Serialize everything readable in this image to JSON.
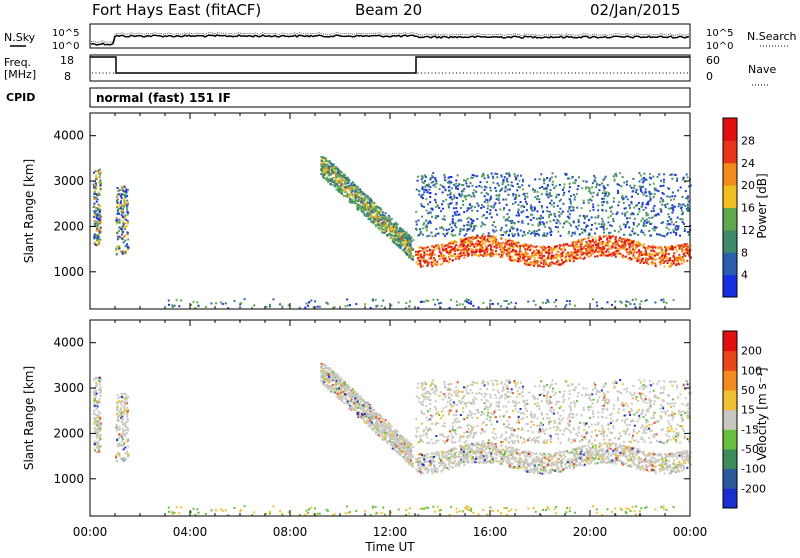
{
  "header": {
    "station": "Fort Hays East (fitACF)",
    "beam": "Beam 20",
    "date": "02/Jan/2015"
  },
  "top_panels": {
    "sky_label": "N.Sky",
    "search_label": "N.Search",
    "sky_scale_top": "10^5",
    "sky_scale_bottom": "10^0",
    "freq_label": "Freq.",
    "freq_unit": "[MHz]",
    "freq_ticks": [
      "18",
      "8"
    ],
    "nave_label": "Nave",
    "nave_ticks": [
      "60",
      "0"
    ],
    "cpid_label": "CPID",
    "cpid_text": "normal (fast) 151 IF"
  },
  "axes": {
    "ylabel": "Slant Range [km]",
    "xlabel": "Time UT",
    "y_ticks": [
      "1000",
      "2000",
      "3000",
      "4000"
    ],
    "x_ticks": [
      "00:00",
      "04:00",
      "08:00",
      "12:00",
      "16:00",
      "20:00",
      "00:00"
    ]
  },
  "colorbars": {
    "power": {
      "title": "Power [dB]",
      "labels": [
        "4",
        "8",
        "12",
        "16",
        "20",
        "24",
        "28"
      ],
      "colors": [
        "#1a2fe0",
        "#2a5fb0",
        "#3e8a6a",
        "#5ea850",
        "#f0c020",
        "#f28a1c",
        "#e83418",
        "#e01010"
      ]
    },
    "velocity": {
      "title": "Velocity [m s⁻¹]",
      "labels": [
        "200",
        "100",
        "50",
        "15",
        "-15",
        "-50",
        "-100",
        "-200"
      ],
      "colors": [
        "#1a2fd0",
        "#2a5a9a",
        "#3d8a5a",
        "#6ac040",
        "#c8c8c0",
        "#f0c030",
        "#f28a20",
        "#e84818",
        "#e01010"
      ]
    }
  },
  "chart_data": [
    {
      "type": "heatmap",
      "title": "Power",
      "xlabel": "Time UT",
      "ylabel": "Slant Range [km]",
      "xlim": [
        0,
        24
      ],
      "ylim": [
        180,
        4500
      ],
      "colorbar": "Power [dB]",
      "colorbar_range": [
        0,
        30
      ],
      "features": [
        {
          "t_start": 0.1,
          "t_end": 0.4,
          "range_low": 1600,
          "range_high": 3300,
          "power_db": [
            4,
            24
          ]
        },
        {
          "t_start": 1.0,
          "t_end": 1.5,
          "range_low": 1400,
          "range_high": 2900,
          "power_db": [
            4,
            22
          ]
        },
        {
          "t_start": 9.2,
          "t_end": 12.9,
          "range_low": 1300,
          "range_high": 3500,
          "power_db": [
            4,
            28
          ]
        },
        {
          "t_start": 13.0,
          "t_end": 24.0,
          "range_low": 1150,
          "range_high": 3300,
          "power_db": [
            4,
            30
          ]
        }
      ]
    },
    {
      "type": "heatmap",
      "title": "Velocity",
      "xlabel": "Time UT",
      "ylabel": "Slant Range [km]",
      "xlim": [
        0,
        24
      ],
      "ylim": [
        180,
        4500
      ],
      "colorbar": "Velocity [m s-1]",
      "colorbar_range": [
        -200,
        200
      ],
      "features": [
        {
          "t_start": 0.1,
          "t_end": 0.4,
          "range_low": 1600,
          "range_high": 3300,
          "velocity": [
            -50,
            15
          ]
        },
        {
          "t_start": 1.0,
          "t_end": 1.5,
          "range_low": 1400,
          "range_high": 2900,
          "velocity": [
            -50,
            15
          ]
        },
        {
          "t_start": 9.2,
          "t_end": 12.9,
          "range_low": 1300,
          "range_high": 3500,
          "velocity": [
            -15,
            50
          ]
        },
        {
          "t_start": 13.0,
          "t_end": 24.0,
          "range_low": 1150,
          "range_high": 3300,
          "velocity": [
            -15,
            15
          ]
        }
      ]
    }
  ]
}
